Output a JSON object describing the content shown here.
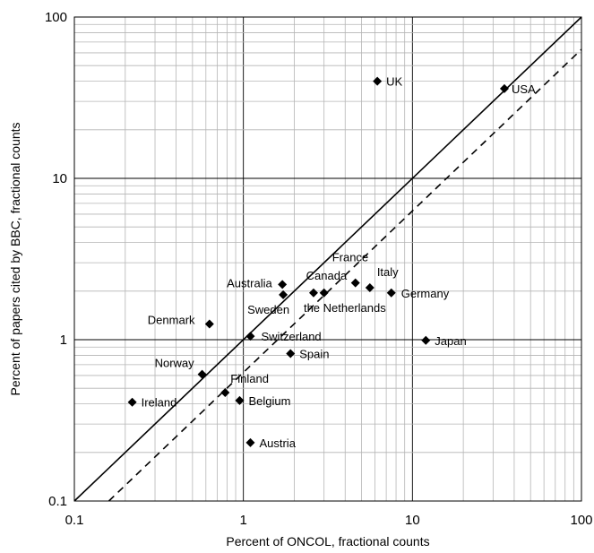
{
  "chart_data": {
    "type": "scatter",
    "xscale": "log",
    "yscale": "log",
    "xlim": [
      0.1,
      100
    ],
    "ylim": [
      0.1,
      100
    ],
    "xticks": [
      "0.1",
      "1",
      "10",
      "100"
    ],
    "yticks": [
      "0.1",
      "1",
      "10",
      "100"
    ],
    "xlabel": "Percent of ONCOL, fractional counts",
    "ylabel": "Percent of papers cited by BBC, fractional counts",
    "grid": true,
    "legend": "none",
    "marker": "diamond",
    "marker_color": "#000000",
    "reference_lines": [
      {
        "style": "solid",
        "x": [
          0.1,
          100
        ],
        "y": [
          0.1,
          100
        ]
      },
      {
        "style": "dashed",
        "x": [
          0.16,
          100
        ],
        "y": [
          0.1,
          63
        ]
      }
    ],
    "points": [
      {
        "label": "UK",
        "x": 6.2,
        "y": 40
      },
      {
        "label": "USA",
        "x": 35,
        "y": 36
      },
      {
        "label": "France",
        "x": 4.6,
        "y": 2.25
      },
      {
        "label": "Italy",
        "x": 5.6,
        "y": 2.1
      },
      {
        "label": "Germany",
        "x": 7.5,
        "y": 1.95
      },
      {
        "label": "Canada",
        "x": 3.0,
        "y": 1.95
      },
      {
        "label": "the Netherlands",
        "x": 2.6,
        "y": 1.95
      },
      {
        "label": "Australia",
        "x": 1.7,
        "y": 2.2
      },
      {
        "label": "Sweden",
        "x": 1.72,
        "y": 1.9
      },
      {
        "label": "Denmark",
        "x": 0.63,
        "y": 1.25
      },
      {
        "label": "Switzerland",
        "x": 1.1,
        "y": 1.05
      },
      {
        "label": "Spain",
        "x": 1.9,
        "y": 0.82
      },
      {
        "label": "Japan",
        "x": 12,
        "y": 0.99
      },
      {
        "label": "Norway",
        "x": 0.57,
        "y": 0.61
      },
      {
        "label": "Finland",
        "x": 0.78,
        "y": 0.47
      },
      {
        "label": "Belgium",
        "x": 0.95,
        "y": 0.42
      },
      {
        "label": "Ireland",
        "x": 0.22,
        "y": 0.41
      },
      {
        "label": "Austria",
        "x": 1.1,
        "y": 0.23
      }
    ]
  }
}
